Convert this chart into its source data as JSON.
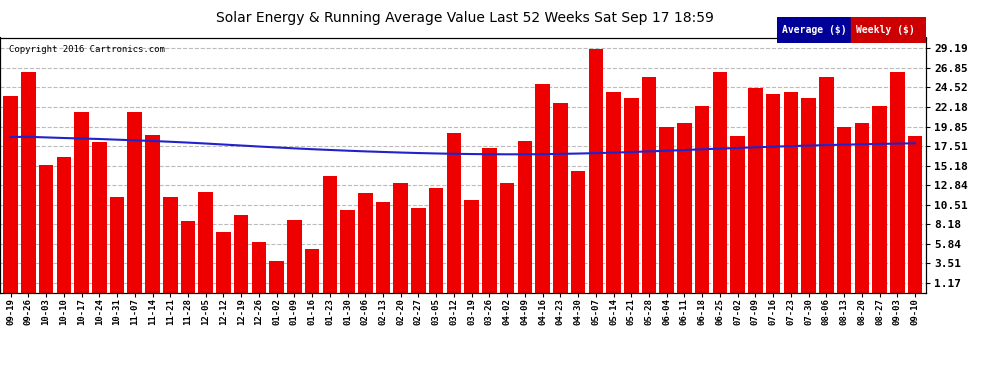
{
  "title": "Solar Energy & Running Average Value Last 52 Weeks Sat Sep 17 18:59",
  "copyright": "Copyright 2016 Cartronics.com",
  "bar_color": "#ee0000",
  "avg_color": "#2222cc",
  "background_color": "#ffffff",
  "grid_color": "#bbbbbb",
  "categories": [
    "09-19",
    "09-26",
    "10-03",
    "10-10",
    "10-17",
    "10-24",
    "10-31",
    "11-07",
    "11-14",
    "11-21",
    "11-28",
    "12-05",
    "12-12",
    "12-19",
    "12-26",
    "01-02",
    "01-09",
    "01-16",
    "01-23",
    "01-30",
    "02-06",
    "02-13",
    "02-20",
    "02-27",
    "03-05",
    "03-12",
    "03-19",
    "03-26",
    "04-02",
    "04-09",
    "04-16",
    "04-23",
    "04-30",
    "05-07",
    "05-14",
    "05-21",
    "05-28",
    "06-04",
    "06-11",
    "06-18",
    "06-25",
    "07-02",
    "07-09",
    "07-16",
    "07-23",
    "07-30",
    "08-06",
    "08-13",
    "08-20",
    "08-27",
    "09-03",
    "09-10"
  ],
  "values": [
    23.492,
    26.422,
    15.299,
    16.15,
    21.585,
    18.02,
    11.377,
    21.597,
    18.795,
    11.413,
    8.501,
    11.969,
    7.208,
    9.244,
    6.057,
    3.718,
    8.647,
    5.145,
    13.973,
    9.912,
    11.938,
    10.803,
    13.081,
    10.154,
    12.492,
    19.108,
    11.05,
    17.293,
    13.049,
    18.065,
    24.925,
    22.7,
    14.59,
    29.166,
    23.98,
    23.285,
    25.831,
    19.746,
    20.23,
    22.28,
    26.417,
    18.682,
    24.5,
    23.8,
    23.98,
    23.285,
    25.831,
    19.746,
    20.23,
    22.28,
    26.317,
    18.682
  ],
  "avg_values": [
    18.6,
    18.62,
    18.55,
    18.48,
    18.42,
    18.36,
    18.28,
    18.2,
    18.12,
    18.03,
    17.93,
    17.82,
    17.7,
    17.58,
    17.46,
    17.35,
    17.24,
    17.14,
    17.05,
    16.96,
    16.88,
    16.81,
    16.74,
    16.68,
    16.63,
    16.59,
    16.56,
    16.54,
    16.53,
    16.53,
    16.55,
    16.58,
    16.62,
    16.67,
    16.73,
    16.8,
    16.88,
    16.96,
    17.04,
    17.13,
    17.21,
    17.29,
    17.37,
    17.44,
    17.51,
    17.57,
    17.63,
    17.68,
    17.73,
    17.77,
    17.81,
    17.85
  ],
  "yticks": [
    1.17,
    3.51,
    5.84,
    8.18,
    10.51,
    12.84,
    15.18,
    17.51,
    19.85,
    22.18,
    24.52,
    26.85,
    29.19
  ],
  "ymin": 0,
  "ymax": 30.5,
  "bar_width": 0.82,
  "legend_labels": [
    "Average ($)",
    "Weekly ($)"
  ],
  "legend_bg_avg": "#000099",
  "legend_bg_weekly": "#cc0000"
}
